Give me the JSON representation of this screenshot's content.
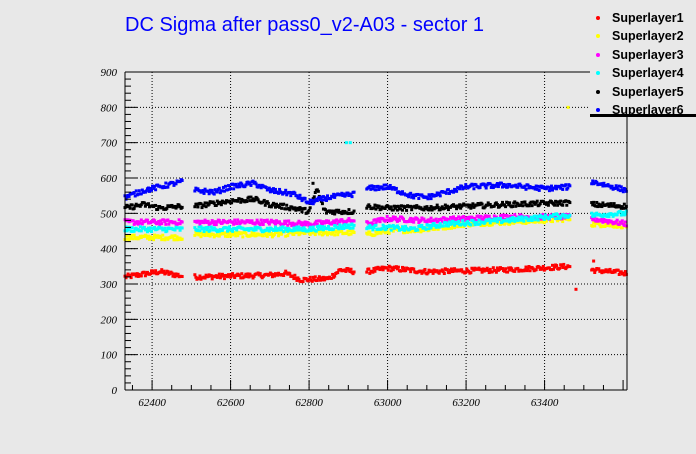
{
  "chart_data": {
    "type": "scatter",
    "title": "DC Sigma after pass0_v2-A03 - sector 1",
    "xlabel": "",
    "ylabel": "",
    "xlim": [
      62331,
      63610
    ],
    "ylim": [
      0,
      900
    ],
    "xticks": [
      "62400",
      "62600",
      "62800",
      "63000",
      "63200",
      "63400"
    ],
    "xtick_values": [
      62400,
      62600,
      62800,
      63000,
      63200,
      63400
    ],
    "yticks": [
      "0",
      "100",
      "200",
      "300",
      "400",
      "500",
      "600",
      "700",
      "800",
      "900"
    ],
    "ytick_values": [
      0,
      100,
      200,
      300,
      400,
      500,
      600,
      700,
      800,
      900
    ],
    "grid": true,
    "legend_position": "top-right",
    "run_ranges": [
      [
        62331,
        62478
      ],
      [
        62509,
        62917
      ],
      [
        62947,
        63466
      ],
      [
        63520,
        63610
      ]
    ],
    "series": [
      {
        "name": "Superlayer1",
        "color": "#ff0000",
        "anchors": [
          [
            62331,
            320
          ],
          [
            62420,
            335
          ],
          [
            62478,
            322
          ],
          [
            62509,
            320
          ],
          [
            62700,
            325
          ],
          [
            62740,
            330
          ],
          [
            62780,
            312
          ],
          [
            62850,
            315
          ],
          [
            62880,
            340
          ],
          [
            62917,
            335
          ],
          [
            62947,
            335
          ],
          [
            63000,
            345
          ],
          [
            63100,
            335
          ],
          [
            63300,
            340
          ],
          [
            63466,
            350
          ],
          [
            63520,
            340
          ],
          [
            63610,
            330
          ]
        ],
        "outliers": [
          [
            63480,
            285
          ],
          [
            63525,
            365
          ]
        ]
      },
      {
        "name": "Superlayer2",
        "color": "#ffff00",
        "anchors": [
          [
            62331,
            432
          ],
          [
            62478,
            432
          ],
          [
            62509,
            440
          ],
          [
            62700,
            440
          ],
          [
            62800,
            445
          ],
          [
            62917,
            445
          ],
          [
            62947,
            440
          ],
          [
            63000,
            450
          ],
          [
            63100,
            455
          ],
          [
            63200,
            470
          ],
          [
            63400,
            480
          ],
          [
            63466,
            485
          ],
          [
            63520,
            470
          ],
          [
            63610,
            465
          ]
        ],
        "outliers": [
          [
            63460,
            800
          ]
        ]
      },
      {
        "name": "Superlayer3",
        "color": "#ff00ff",
        "anchors": [
          [
            62331,
            475
          ],
          [
            62478,
            475
          ],
          [
            62509,
            475
          ],
          [
            62700,
            475
          ],
          [
            62800,
            470
          ],
          [
            62917,
            480
          ],
          [
            62947,
            470
          ],
          [
            63000,
            485
          ],
          [
            63100,
            480
          ],
          [
            63300,
            490
          ],
          [
            63466,
            490
          ],
          [
            63520,
            485
          ],
          [
            63610,
            470
          ]
        ],
        "outliers": []
      },
      {
        "name": "Superlayer4",
        "color": "#00ffff",
        "anchors": [
          [
            62331,
            455
          ],
          [
            62478,
            455
          ],
          [
            62509,
            455
          ],
          [
            62700,
            455
          ],
          [
            62800,
            455
          ],
          [
            62917,
            465
          ],
          [
            62947,
            460
          ],
          [
            63000,
            460
          ],
          [
            63060,
            455
          ],
          [
            63150,
            470
          ],
          [
            63300,
            480
          ],
          [
            63466,
            495
          ],
          [
            63520,
            495
          ],
          [
            63610,
            500
          ]
        ],
        "outliers": [
          [
            62895,
            700
          ],
          [
            62905,
            700
          ]
        ]
      },
      {
        "name": "Superlayer5",
        "color": "#000000",
        "anchors": [
          [
            62331,
            515
          ],
          [
            62380,
            525
          ],
          [
            62420,
            515
          ],
          [
            62478,
            520
          ],
          [
            62509,
            520
          ],
          [
            62600,
            535
          ],
          [
            62660,
            540
          ],
          [
            62700,
            525
          ],
          [
            62760,
            515
          ],
          [
            62800,
            505
          ],
          [
            62820,
            570
          ],
          [
            62840,
            505
          ],
          [
            62917,
            505
          ],
          [
            62947,
            520
          ],
          [
            63000,
            515
          ],
          [
            63100,
            515
          ],
          [
            63200,
            520
          ],
          [
            63300,
            525
          ],
          [
            63466,
            530
          ],
          [
            63520,
            525
          ],
          [
            63610,
            520
          ]
        ],
        "outliers": [
          [
            62810,
            585
          ]
        ]
      },
      {
        "name": "Superlayer6",
        "color": "#0000ff",
        "anchors": [
          [
            62331,
            545
          ],
          [
            62380,
            565
          ],
          [
            62478,
            590
          ],
          [
            62509,
            565
          ],
          [
            62560,
            560
          ],
          [
            62600,
            575
          ],
          [
            62660,
            585
          ],
          [
            62700,
            565
          ],
          [
            62760,
            555
          ],
          [
            62800,
            530
          ],
          [
            62850,
            545
          ],
          [
            62917,
            555
          ],
          [
            62947,
            570
          ],
          [
            63000,
            575
          ],
          [
            63060,
            550
          ],
          [
            63100,
            545
          ],
          [
            63200,
            575
          ],
          [
            63300,
            580
          ],
          [
            63400,
            570
          ],
          [
            63466,
            575
          ],
          [
            63520,
            590
          ],
          [
            63610,
            565
          ]
        ],
        "outliers": []
      }
    ]
  }
}
